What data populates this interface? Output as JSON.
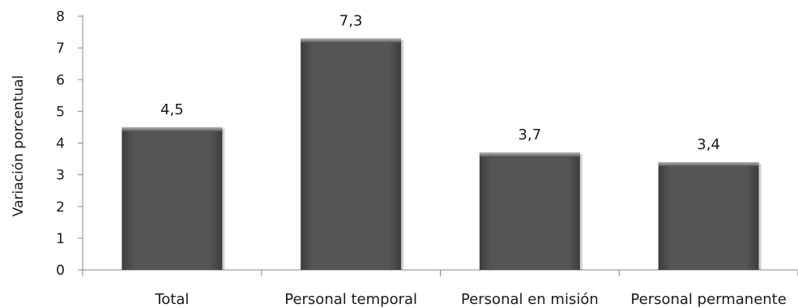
{
  "chart_data": {
    "type": "bar",
    "title": "",
    "xlabel": "",
    "ylabel": "Variación porcentual",
    "categories": [
      "Total",
      "Personal temporal",
      "Personal en misión",
      "Personal permanente"
    ],
    "values": [
      4.5,
      7.3,
      3.7,
      3.4
    ],
    "data_labels": [
      "4,5",
      "7,3",
      "3,7",
      "3,4"
    ],
    "yticks": [
      0,
      1,
      2,
      3,
      4,
      5,
      6,
      7,
      8
    ],
    "ylim": [
      0,
      8
    ],
    "grid": false,
    "legend": "none",
    "colors": {
      "bar_light": "#8c8c8c",
      "bar_mid": "#555555",
      "bar_dark": "#3d3d3d",
      "axis": "#8a8a8a"
    }
  }
}
